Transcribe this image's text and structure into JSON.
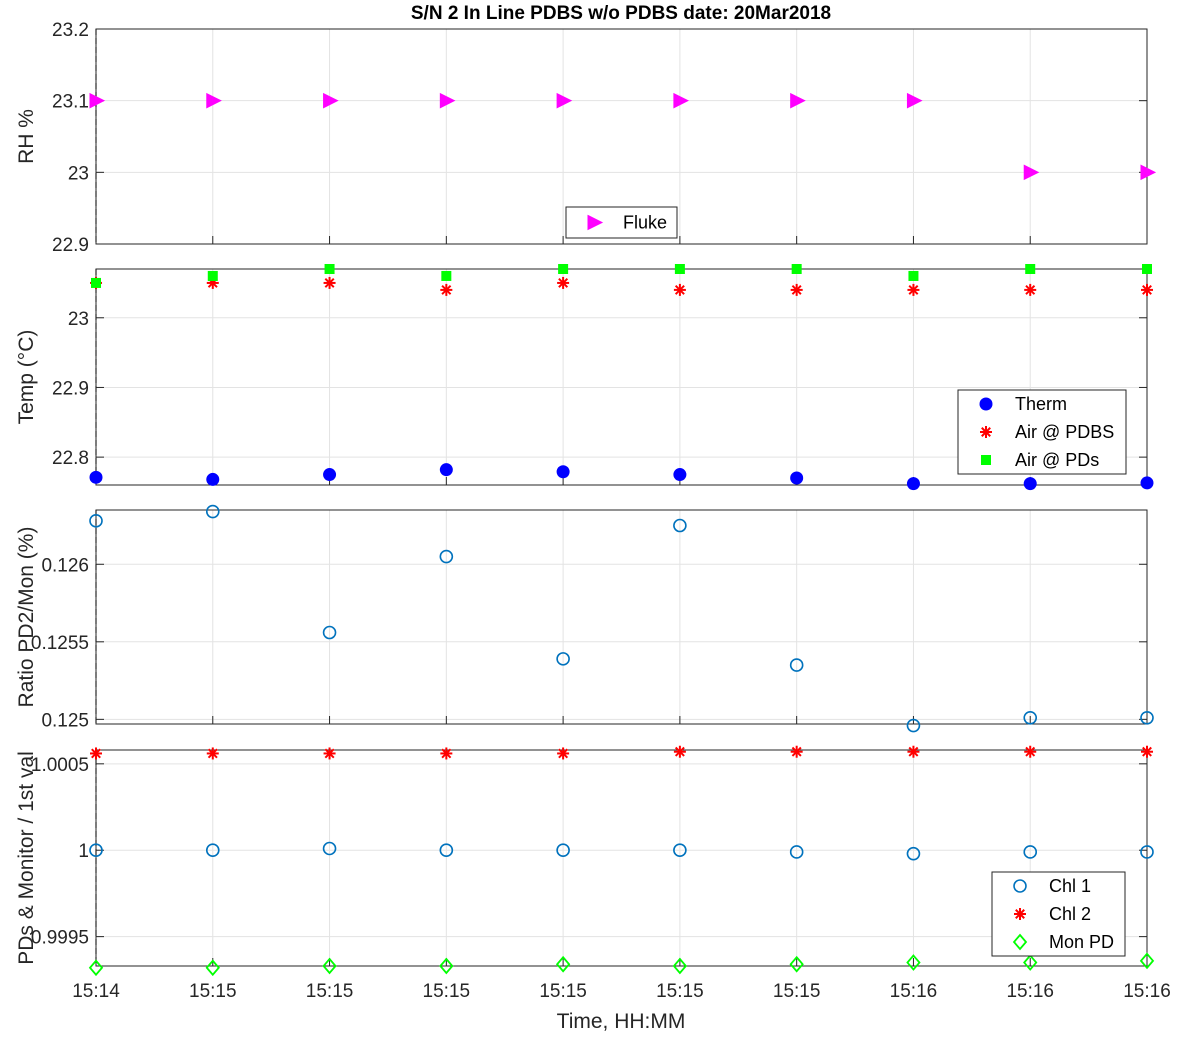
{
  "figure": {
    "title": "S/N 2 In Line PDBS w/o PDBS date: 20Mar2018",
    "xlabel": "Time, HH:MM",
    "xtick_labels": [
      "15:14",
      "15:15",
      "15:15",
      "15:15",
      "15:15",
      "15:15",
      "15:15",
      "15:16",
      "15:16",
      "15:16"
    ]
  },
  "chart_data": [
    {
      "type": "scatter",
      "ylabel": "RH %",
      "ylim": [
        22.9,
        23.2
      ],
      "yticks": [
        22.9,
        23,
        23.1,
        23.2
      ],
      "ytick_labels": [
        "22.9",
        "23",
        "23.1",
        "23.2"
      ],
      "grid": true,
      "legend_position": "bottom-center",
      "series": [
        {
          "name": "Fluke",
          "marker": "triangle-right",
          "color": "#ff00ff",
          "values": [
            23.1,
            23.1,
            23.1,
            23.1,
            23.1,
            23.1,
            23.1,
            23.1,
            23.0,
            23.0
          ]
        }
      ]
    },
    {
      "type": "scatter",
      "ylabel": "Temp (°C)",
      "ylim": [
        22.76,
        23.07
      ],
      "yticks": [
        22.8,
        22.9,
        23.0
      ],
      "ytick_labels": [
        "22.8",
        "22.9",
        "23"
      ],
      "grid": true,
      "legend_position": "bottom-right",
      "series": [
        {
          "name": "Therm",
          "marker": "circle-filled",
          "color": "#0000ff",
          "values": [
            22.771,
            22.768,
            22.775,
            22.782,
            22.779,
            22.775,
            22.77,
            22.762,
            22.762,
            22.763
          ]
        },
        {
          "name": "Air @ PDBS",
          "marker": "asterisk",
          "color": "#ff0000",
          "values": [
            23.05,
            23.05,
            23.05,
            23.04,
            23.05,
            23.04,
            23.04,
            23.04,
            23.04,
            23.04
          ]
        },
        {
          "name": "Air @ PDs",
          "marker": "square-filled",
          "color": "#00ff00",
          "values": [
            23.05,
            23.06,
            23.07,
            23.06,
            23.07,
            23.07,
            23.07,
            23.06,
            23.07,
            23.07
          ]
        }
      ]
    },
    {
      "type": "scatter",
      "ylabel": "Ratio PD2/Mon (%)",
      "ylim": [
        0.12497,
        0.12635
      ],
      "yticks": [
        0.125,
        0.1255,
        0.126
      ],
      "ytick_labels": [
        "0.125",
        "0.1255",
        "0.126"
      ],
      "grid": true,
      "series": [
        {
          "name": "",
          "marker": "circle-open",
          "color": "#0072bd",
          "values": [
            0.12628,
            0.12634,
            0.12556,
            0.12605,
            0.12539,
            0.12625,
            0.12535,
            0.12496,
            0.12501,
            0.12501
          ]
        }
      ]
    },
    {
      "type": "scatter",
      "ylabel": "PDs & Monitor / 1st val",
      "ylim": [
        0.99933,
        1.00058
      ],
      "yticks": [
        0.9995,
        1.0,
        1.0005
      ],
      "ytick_labels": [
        "0.9995",
        "1",
        "1.0005"
      ],
      "grid": true,
      "legend_position": "bottom-right",
      "series": [
        {
          "name": "Chl 1",
          "marker": "circle-open",
          "color": "#0072bd",
          "values": [
            1.0,
            1.0,
            1.00001,
            1.0,
            1.0,
            1.0,
            0.99999,
            0.99998,
            0.99999,
            0.99999
          ]
        },
        {
          "name": "Chl 2",
          "marker": "asterisk",
          "color": "#ff0000",
          "values": [
            1.00056,
            1.00056,
            1.00056,
            1.00056,
            1.00056,
            1.00057,
            1.00057,
            1.00057,
            1.00057,
            1.00057
          ]
        },
        {
          "name": "Mon PD",
          "marker": "diamond-open",
          "color": "#00ff00",
          "values": [
            0.99932,
            0.99932,
            0.99933,
            0.99933,
            0.99934,
            0.99933,
            0.99934,
            0.99935,
            0.99935,
            0.99936
          ]
        }
      ]
    }
  ]
}
